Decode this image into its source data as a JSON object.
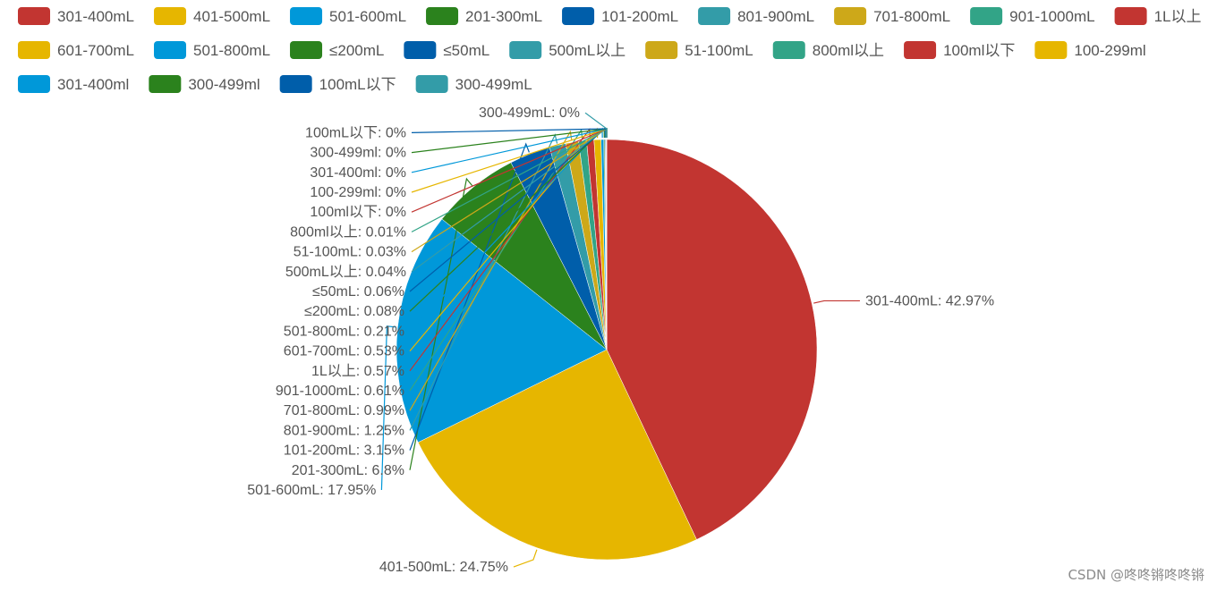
{
  "chart_data": {
    "type": "pie",
    "title": "",
    "legend_position": "top",
    "slices": [
      {
        "label": "301-400mL",
        "value": 42.97,
        "color": "#c23531"
      },
      {
        "label": "401-500mL",
        "value": 24.75,
        "color": "#e6b600"
      },
      {
        "label": "501-600mL",
        "value": 17.95,
        "color": "#0098d9"
      },
      {
        "label": "201-300mL",
        "value": 6.8,
        "color": "#2b821d"
      },
      {
        "label": "101-200mL",
        "value": 3.15,
        "color": "#005eaa"
      },
      {
        "label": "801-900mL",
        "value": 1.25,
        "color": "#339ca8"
      },
      {
        "label": "701-800mL",
        "value": 0.99,
        "color": "#cda819"
      },
      {
        "label": "901-1000mL",
        "value": 0.61,
        "color": "#32a487"
      },
      {
        "label": "1L以上",
        "value": 0.57,
        "color": "#c23531"
      },
      {
        "label": "601-700mL",
        "value": 0.53,
        "color": "#e6b600"
      },
      {
        "label": "501-800mL",
        "value": 0.21,
        "color": "#0098d9"
      },
      {
        "label": "≤200mL",
        "value": 0.08,
        "color": "#2b821d"
      },
      {
        "label": "≤50mL",
        "value": 0.06,
        "color": "#005eaa"
      },
      {
        "label": "500mL以上",
        "value": 0.04,
        "color": "#339ca8"
      },
      {
        "label": "51-100mL",
        "value": 0.03,
        "color": "#cda819"
      },
      {
        "label": "800ml以上",
        "value": 0.01,
        "color": "#32a487"
      },
      {
        "label": "100ml以下",
        "value": 0,
        "color": "#c23531"
      },
      {
        "label": "100-299ml",
        "value": 0,
        "color": "#e6b600"
      },
      {
        "label": "301-400ml",
        "value": 0,
        "color": "#0098d9"
      },
      {
        "label": "300-499ml",
        "value": 0,
        "color": "#2b821d"
      },
      {
        "label": "100mL以下",
        "value": 0,
        "color": "#005eaa"
      },
      {
        "label": "300-499mL",
        "value": 0,
        "color": "#339ca8"
      }
    ]
  },
  "watermark": "CSDN @咚咚锵咚咚锵"
}
